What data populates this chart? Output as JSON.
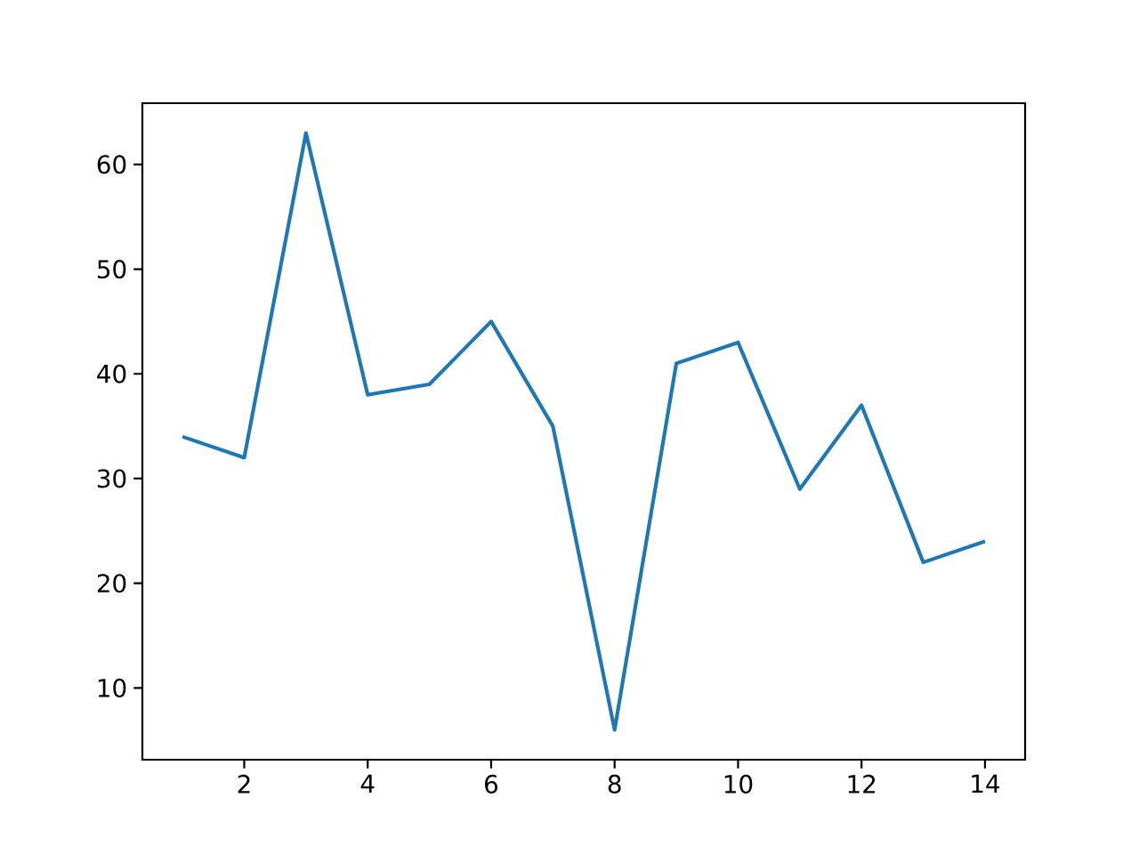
{
  "chart_data": {
    "type": "line",
    "x": [
      1,
      2,
      3,
      4,
      5,
      6,
      7,
      8,
      9,
      10,
      11,
      12,
      13,
      14
    ],
    "series": [
      {
        "color": "#1f77b4",
        "values": [
          34,
          32,
          63,
          38,
          39,
          45,
          35,
          6,
          41,
          43,
          29,
          37,
          22,
          24
        ]
      }
    ],
    "xlim": [
      0.35,
      14.65
    ],
    "ylim": [
      3.15,
      65.85
    ],
    "xticks": [
      2,
      4,
      6,
      8,
      10,
      12,
      14
    ],
    "yticks": [
      10,
      20,
      30,
      40,
      50,
      60
    ],
    "grid": false,
    "marker": "none",
    "line_style": "solid"
  }
}
